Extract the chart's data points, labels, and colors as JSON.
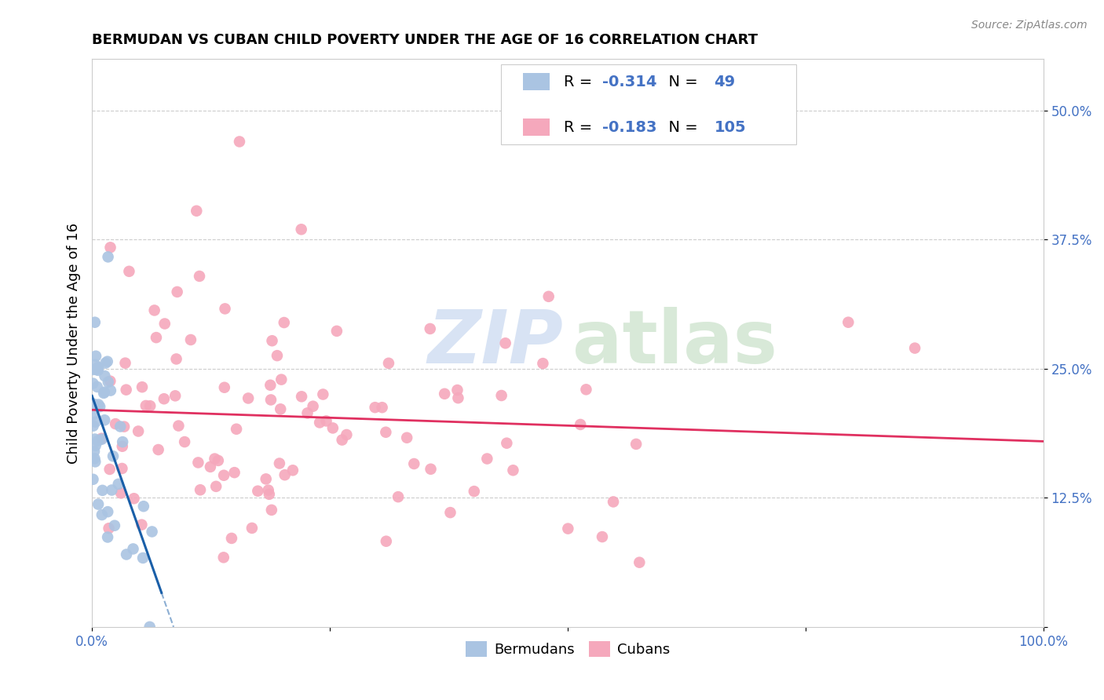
{
  "title": "BERMUDAN VS CUBAN CHILD POVERTY UNDER THE AGE OF 16 CORRELATION CHART",
  "source": "Source: ZipAtlas.com",
  "ylabel": "Child Poverty Under the Age of 16",
  "xlim": [
    0.0,
    1.0
  ],
  "ylim": [
    0.0,
    0.55
  ],
  "ytick_positions": [
    0.0,
    0.125,
    0.25,
    0.375,
    0.5
  ],
  "yticklabels_right": [
    "",
    "12.5%",
    "25.0%",
    "37.5%",
    "50.0%"
  ],
  "legend_r_bermudans": "-0.314",
  "legend_n_bermudans": "49",
  "legend_r_cubans": "-0.183",
  "legend_n_cubans": "105",
  "bermudans_color": "#aac4e2",
  "cubans_color": "#f5a8bc",
  "trend_bermudans_color": "#1a5fa8",
  "trend_cubans_color": "#e03060",
  "background_color": "#ffffff",
  "grid_color": "#cccccc",
  "tick_color": "#4472c4",
  "legend_text_color": "#4472c4",
  "title_fontsize": 13,
  "axis_fontsize": 12,
  "legend_fontsize": 14,
  "marker_size": 110
}
